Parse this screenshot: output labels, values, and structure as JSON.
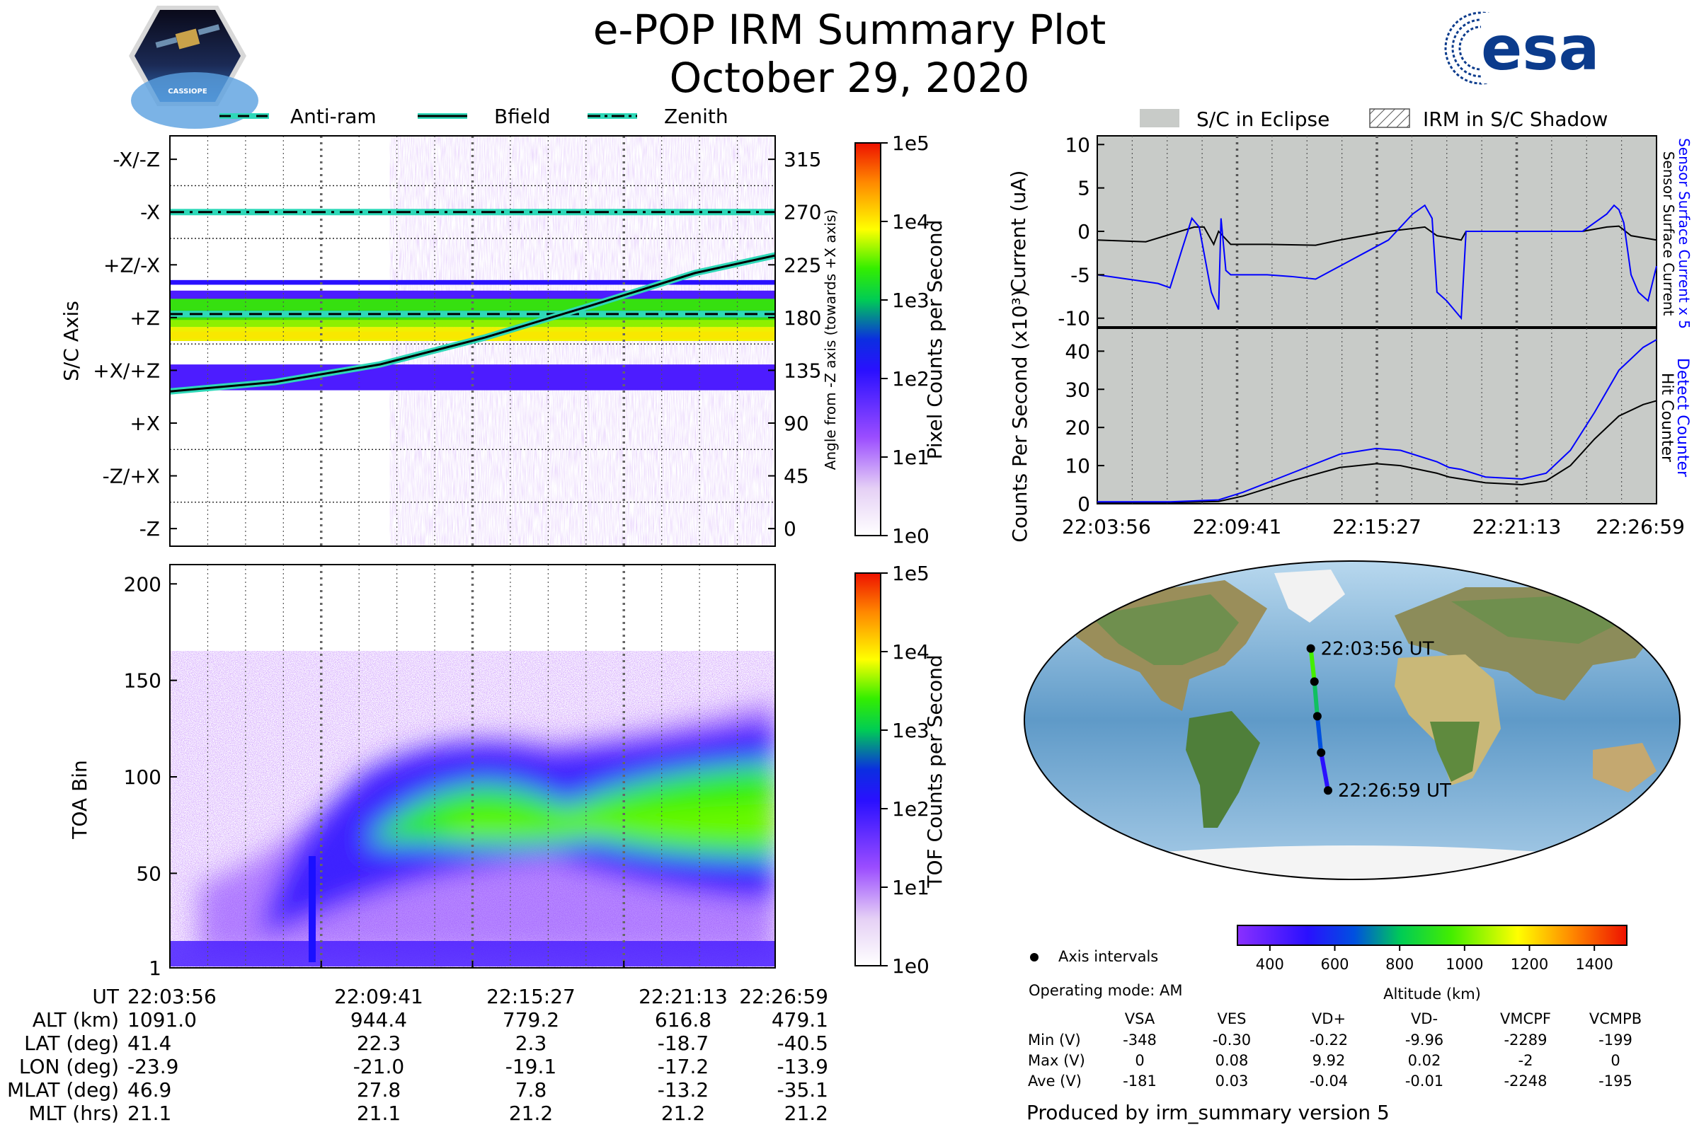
{
  "header": {
    "title": "e-POP IRM Summary Plot",
    "date": "October 29, 2020",
    "left_logo_text": "CASSIOPE",
    "right_logo_text": "esa"
  },
  "colors": {
    "eclipse": "#c8cbc8",
    "current_black": "#000000",
    "current_blue": "#0000ff",
    "teal": "#2fd8b8"
  },
  "chart_data": [
    {
      "id": "sc-axis",
      "type": "heatmap",
      "legend": [
        {
          "label": "Anti-ram",
          "style": "dashed"
        },
        {
          "label": "Bfield",
          "style": "solid"
        },
        {
          "label": "Zenith",
          "style": "dashdot"
        }
      ],
      "ylabel": "S/C Axis",
      "y_categories": [
        "-X/-Z",
        "-X",
        "+Z/-X",
        "+Z",
        "+X/+Z",
        "+X",
        "-Z/+X",
        "-Z"
      ],
      "right_ylabel": "Angle from -Z axis (towards +X axis)",
      "right_ticks": [
        315,
        270,
        225,
        180,
        135,
        90,
        45,
        0
      ],
      "ylim": [
        -15,
        335
      ],
      "colorbar": {
        "label": "Pixel Counts per Second",
        "ticks": [
          "1e5",
          "1e4",
          "1e3",
          "1e2",
          "1e1",
          "1e0"
        ]
      },
      "series": [
        {
          "name": "Zenith",
          "x": [
            0,
            23.05
          ],
          "y": [
            270,
            270
          ]
        },
        {
          "name": "Anti-ram",
          "x": [
            0,
            23.05
          ],
          "y": [
            183,
            183
          ]
        },
        {
          "name": "Bfield",
          "x": [
            0,
            4,
            8,
            12,
            16,
            20,
            23.05
          ],
          "y": [
            117,
            125,
            140,
            163,
            190,
            218,
            233
          ]
        }
      ],
      "bands": [
        {
          "y": [
            208,
            212
          ],
          "level": 2.0
        },
        {
          "y": [
            194,
            203
          ],
          "level": 1.8
        },
        {
          "y": [
            172,
            196
          ],
          "level": 2.7
        },
        {
          "y": [
            160,
            172
          ],
          "level": 3.1
        },
        {
          "y": [
            118,
            140
          ],
          "level": 1.9
        }
      ]
    },
    {
      "id": "toa",
      "type": "heatmap",
      "ylabel": "TOA Bin",
      "yticks": [
        1,
        50,
        100,
        150,
        200
      ],
      "ylim": [
        1,
        210
      ],
      "colorbar": {
        "label": "TOF Counts per Second",
        "ticks": [
          "1e5",
          "1e4",
          "1e3",
          "1e2",
          "1e1",
          "1e0"
        ]
      }
    },
    {
      "id": "current",
      "type": "line",
      "ylabel": "Current (uA)",
      "yticks": [
        10,
        5,
        0,
        -5,
        -10
      ],
      "ylim": [
        -11,
        11
      ],
      "legend": [
        {
          "label": "S/C in Eclipse",
          "style": "fill"
        },
        {
          "label": "IRM in S/C Shadow",
          "style": "hatch"
        }
      ],
      "right_labels": [
        "Sensor Surface Current x 5",
        "Sensor Surface Current"
      ],
      "series": [
        {
          "name": "Sensor Surface Current x 5",
          "x": [
            0,
            2.5,
            3.0,
            3.5,
            3.9,
            4.2,
            4.7,
            5.0,
            5.1,
            5.3,
            5.5,
            6.0,
            7.0,
            8.0,
            9.0,
            10.0,
            11.0,
            12.0,
            13.0,
            13.5,
            13.8,
            14.0,
            14.4,
            15.0,
            15.2,
            15.4,
            15.6,
            16.0,
            17.0,
            18.0,
            19.0,
            20.0,
            20.5,
            21.0,
            21.3,
            21.5,
            21.7,
            22.0,
            22.3,
            22.7,
            23.05
          ],
          "y": [
            -5,
            -6,
            -6.5,
            -2,
            1.5,
            0.5,
            -7,
            -9,
            1.5,
            -4.5,
            -5,
            -5,
            -5,
            -5.2,
            -5.5,
            -4,
            -2.5,
            -1,
            2,
            3,
            1.5,
            -7,
            -8,
            -10,
            0,
            0,
            0,
            0,
            0,
            0,
            0,
            0,
            1,
            2,
            3,
            2.5,
            1,
            -5,
            -7,
            -8,
            -4
          ]
        },
        {
          "name": "Sensor Surface Current",
          "x": [
            0,
            2,
            4,
            4.4,
            4.8,
            5.0,
            5.5,
            7,
            9,
            10,
            12,
            13.5,
            14,
            15,
            15.2,
            16,
            17,
            19,
            20,
            21,
            21.5,
            22,
            23.05
          ],
          "y": [
            -1,
            -1.2,
            0.5,
            0.5,
            -1.5,
            0,
            -1.5,
            -1.5,
            -1.6,
            -1,
            0,
            0.5,
            -0.5,
            -1,
            0,
            0,
            0,
            0,
            0,
            0.5,
            0.6,
            -0.5,
            -1
          ]
        }
      ]
    },
    {
      "id": "counts",
      "type": "line",
      "ylabel": "Counts Per Second (x10³)",
      "yticks": [
        0,
        10,
        20,
        30,
        40
      ],
      "ylim": [
        0,
        46
      ],
      "right_labels": [
        "Detect Counter",
        "Hit Counter"
      ],
      "series": [
        {
          "name": "Detect Counter",
          "x": [
            0,
            3,
            5,
            6,
            8,
            10,
            11.5,
            12.5,
            14,
            14.5,
            15,
            16,
            17.5,
            18.5,
            19.5,
            20.5,
            21.5,
            22.5,
            23.05
          ],
          "y": [
            0.5,
            0.5,
            1,
            3,
            8,
            13,
            14.5,
            14,
            11,
            9.5,
            9,
            7,
            6.5,
            8,
            14,
            24,
            35,
            41,
            43
          ]
        },
        {
          "name": "Hit Counter",
          "x": [
            0,
            3,
            5,
            6,
            8,
            10,
            11.5,
            12.5,
            14,
            14.5,
            15,
            16,
            17.5,
            18.5,
            19.5,
            20.5,
            21.5,
            22.5,
            23.05
          ],
          "y": [
            0.3,
            0.3,
            0.6,
            2,
            6,
            9.5,
            10.5,
            10,
            8,
            7,
            6.5,
            5.5,
            5,
            6,
            10,
            17,
            23,
            26,
            27
          ]
        }
      ]
    },
    {
      "id": "map",
      "type": "scatter",
      "labels": {
        "start": "22:03:56 UT",
        "end": "22:26:59 UT"
      },
      "track": [
        {
          "lon": -23.9,
          "lat": 41.4
        },
        {
          "lon": -21.0,
          "lat": 22.3
        },
        {
          "lon": -19.1,
          "lat": 2.3
        },
        {
          "lon": -17.2,
          "lat": -18.7
        },
        {
          "lon": -13.9,
          "lat": -40.5
        }
      ],
      "altitude_colorbar": {
        "label": "Altitude (km)",
        "ticks": [
          400,
          600,
          800,
          1000,
          1200,
          1400
        ],
        "range": [
          300,
          1500
        ]
      },
      "legend": "Axis intervals"
    }
  ],
  "time_axis": [
    "22:03:56",
    "22:09:41",
    "22:15:27",
    "22:21:13",
    "22:26:59"
  ],
  "ephemeris": {
    "rows": [
      {
        "label": "UT",
        "values": [
          "22:03:56",
          "22:09:41",
          "22:15:27",
          "22:21:13",
          "22:26:59"
        ]
      },
      {
        "label": "ALT (km)",
        "values": [
          "1091.0",
          "944.4",
          "779.2",
          "616.8",
          "479.1"
        ]
      },
      {
        "label": "LAT (deg)",
        "values": [
          "41.4",
          "22.3",
          "2.3",
          "-18.7",
          "-40.5"
        ]
      },
      {
        "label": "LON (deg)",
        "values": [
          "-23.9",
          "-21.0",
          "-19.1",
          "-17.2",
          "-13.9"
        ]
      },
      {
        "label": "MLAT (deg)",
        "values": [
          "46.9",
          "27.8",
          "7.8",
          "-13.2",
          "-35.1"
        ]
      },
      {
        "label": "MLT (hrs)",
        "values": [
          "21.1",
          "21.1",
          "21.2",
          "21.2",
          "21.2"
        ]
      }
    ]
  },
  "voltages": {
    "operating_mode": "Operating mode: AM",
    "columns": [
      "VSA",
      "VES",
      "VD+",
      "VD-",
      "VMCPF",
      "VCMPB"
    ],
    "rows": [
      {
        "label": "Min (V)",
        "values": [
          "-348",
          "-0.30",
          "-0.22",
          "-9.96",
          "-2289",
          "-199"
        ]
      },
      {
        "label": "Max (V)",
        "values": [
          "0",
          "0.08",
          "9.92",
          "0.02",
          "-2",
          "0"
        ]
      },
      {
        "label": "Ave (V)",
        "values": [
          "-181",
          "0.03",
          "-0.04",
          "-0.01",
          "-2248",
          "-195"
        ]
      }
    ]
  },
  "footer": "Produced by irm_summary version 5"
}
